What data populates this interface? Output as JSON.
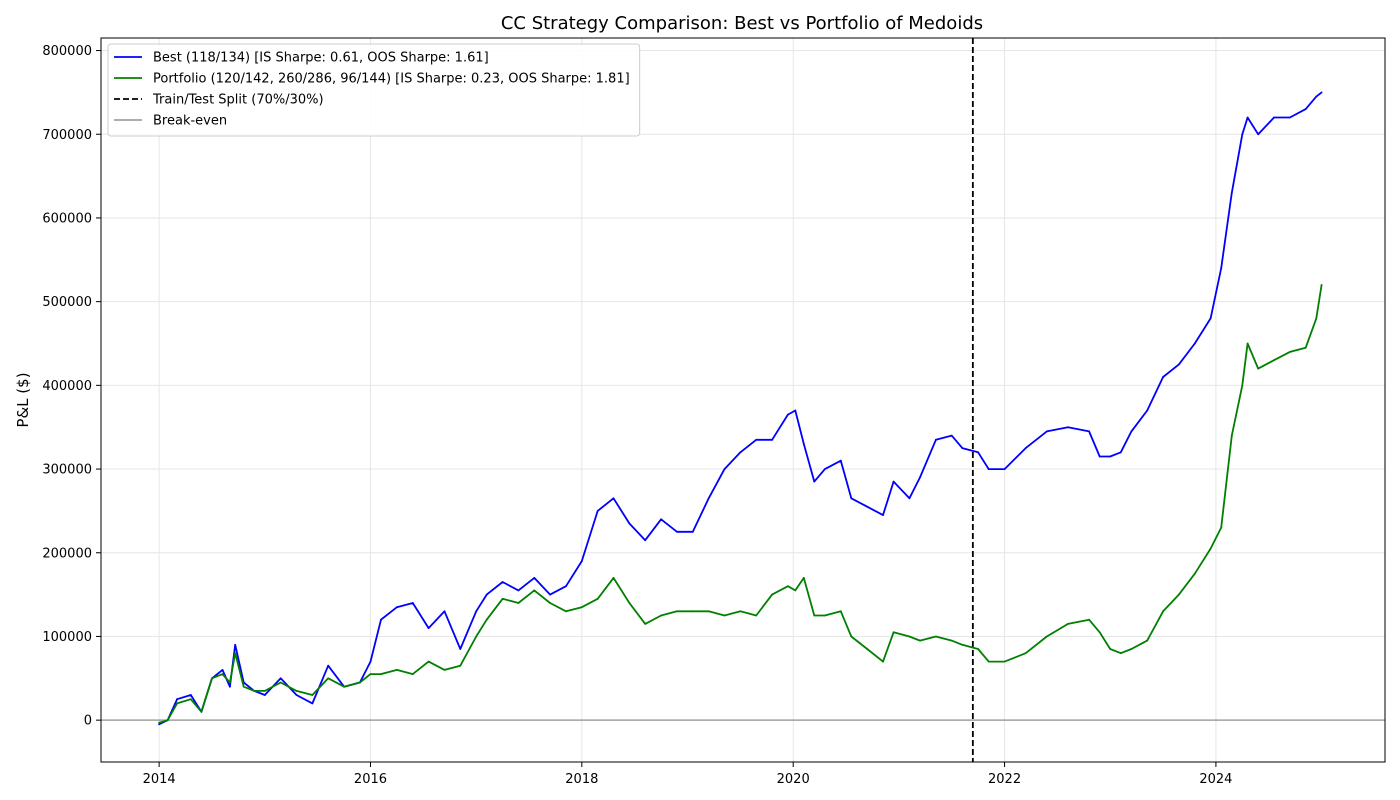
{
  "chart_data": {
    "type": "line",
    "title": "CC Strategy Comparison: Best vs Portfolio of Medoids",
    "xlabel": "",
    "ylabel": "P&L ($)",
    "xlim": [
      2013.45,
      2025.6
    ],
    "ylim": [
      -50000,
      815000
    ],
    "x_ticks": [
      2014,
      2016,
      2018,
      2020,
      2022,
      2024
    ],
    "x_tick_labels": [
      "2014",
      "2016",
      "2018",
      "2020",
      "2022",
      "2024"
    ],
    "y_ticks": [
      0,
      100000,
      200000,
      300000,
      400000,
      500000,
      600000,
      700000,
      800000
    ],
    "y_tick_labels": [
      "0",
      "100000",
      "200000",
      "300000",
      "400000",
      "500000",
      "600000",
      "700000",
      "800000"
    ],
    "grid": true,
    "legend_position": "upper left",
    "split_x": 2021.7,
    "baseline_y": 0,
    "series": [
      {
        "name": "Best (118/134) [IS Sharpe: 0.61, OOS Sharpe: 1.61]",
        "color": "#0000ff",
        "style": "solid",
        "x": [
          2014.0,
          2014.08,
          2014.17,
          2014.3,
          2014.4,
          2014.5,
          2014.6,
          2014.67,
          2014.72,
          2014.8,
          2014.9,
          2015.0,
          2015.15,
          2015.3,
          2015.45,
          2015.6,
          2015.75,
          2015.9,
          2016.0,
          2016.1,
          2016.25,
          2016.4,
          2016.55,
          2016.7,
          2016.85,
          2017.0,
          2017.1,
          2017.25,
          2017.4,
          2017.55,
          2017.7,
          2017.85,
          2018.0,
          2018.15,
          2018.3,
          2018.45,
          2018.6,
          2018.75,
          2018.9,
          2019.05,
          2019.2,
          2019.35,
          2019.5,
          2019.65,
          2019.8,
          2019.95,
          2020.02,
          2020.1,
          2020.2,
          2020.3,
          2020.45,
          2020.55,
          2020.7,
          2020.85,
          2020.95,
          2021.1,
          2021.2,
          2021.35,
          2021.5,
          2021.6,
          2021.75,
          2021.85,
          2022.0,
          2022.2,
          2022.4,
          2022.6,
          2022.8,
          2022.9,
          2023.0,
          2023.1,
          2023.2,
          2023.35,
          2023.5,
          2023.65,
          2023.8,
          2023.95,
          2024.05,
          2024.15,
          2024.25,
          2024.3,
          2024.4,
          2024.55,
          2024.7,
          2024.85,
          2024.95,
          2025.0
        ],
        "y": [
          -5000,
          0,
          25000,
          30000,
          10000,
          50000,
          60000,
          40000,
          90000,
          45000,
          35000,
          30000,
          50000,
          30000,
          20000,
          65000,
          40000,
          45000,
          70000,
          120000,
          135000,
          140000,
          110000,
          130000,
          85000,
          130000,
          150000,
          165000,
          155000,
          170000,
          150000,
          160000,
          190000,
          250000,
          265000,
          235000,
          215000,
          240000,
          225000,
          225000,
          265000,
          300000,
          320000,
          335000,
          335000,
          365000,
          370000,
          330000,
          285000,
          300000,
          310000,
          265000,
          255000,
          245000,
          285000,
          265000,
          290000,
          335000,
          340000,
          325000,
          320000,
          300000,
          300000,
          325000,
          345000,
          350000,
          345000,
          315000,
          315000,
          320000,
          345000,
          370000,
          410000,
          425000,
          450000,
          480000,
          540000,
          630000,
          700000,
          720000,
          700000,
          720000,
          720000,
          730000,
          745000,
          750000
        ]
      },
      {
        "name": "Portfolio (120/142, 260/286, 96/144) [IS Sharpe: 0.23, OOS Sharpe: 1.81]",
        "color": "#008000",
        "style": "solid",
        "x": [
          2014.0,
          2014.08,
          2014.17,
          2014.3,
          2014.4,
          2014.5,
          2014.6,
          2014.67,
          2014.72,
          2014.8,
          2014.9,
          2015.0,
          2015.15,
          2015.3,
          2015.45,
          2015.6,
          2015.75,
          2015.9,
          2016.0,
          2016.1,
          2016.25,
          2016.4,
          2016.55,
          2016.7,
          2016.85,
          2017.0,
          2017.1,
          2017.25,
          2017.4,
          2017.55,
          2017.7,
          2017.85,
          2018.0,
          2018.15,
          2018.3,
          2018.45,
          2018.6,
          2018.75,
          2018.9,
          2019.05,
          2019.2,
          2019.35,
          2019.5,
          2019.65,
          2019.8,
          2019.95,
          2020.02,
          2020.1,
          2020.2,
          2020.3,
          2020.45,
          2020.55,
          2020.7,
          2020.85,
          2020.95,
          2021.1,
          2021.2,
          2021.35,
          2021.5,
          2021.6,
          2021.75,
          2021.85,
          2022.0,
          2022.2,
          2022.4,
          2022.6,
          2022.8,
          2022.9,
          2023.0,
          2023.1,
          2023.2,
          2023.35,
          2023.5,
          2023.65,
          2023.8,
          2023.95,
          2024.05,
          2024.15,
          2024.25,
          2024.3,
          2024.4,
          2024.55,
          2024.7,
          2024.85,
          2024.95,
          2025.0
        ],
        "y": [
          -3000,
          0,
          20000,
          25000,
          10000,
          50000,
          55000,
          45000,
          80000,
          40000,
          35000,
          35000,
          45000,
          35000,
          30000,
          50000,
          40000,
          45000,
          55000,
          55000,
          60000,
          55000,
          70000,
          60000,
          65000,
          100000,
          120000,
          145000,
          140000,
          155000,
          140000,
          130000,
          135000,
          145000,
          170000,
          140000,
          115000,
          125000,
          130000,
          130000,
          130000,
          125000,
          130000,
          125000,
          150000,
          160000,
          155000,
          170000,
          125000,
          125000,
          130000,
          100000,
          85000,
          70000,
          105000,
          100000,
          95000,
          100000,
          95000,
          90000,
          85000,
          70000,
          70000,
          80000,
          100000,
          115000,
          120000,
          105000,
          85000,
          80000,
          85000,
          95000,
          130000,
          150000,
          175000,
          205000,
          230000,
          340000,
          400000,
          450000,
          420000,
          430000,
          440000,
          445000,
          480000,
          520000
        ]
      }
    ],
    "legend": [
      {
        "label": "Best (118/134) [IS Sharpe: 0.61, OOS Sharpe: 1.61]",
        "color": "#0000ff",
        "style": "solid"
      },
      {
        "label": "Portfolio (120/142, 260/286, 96/144) [IS Sharpe: 0.23, OOS Sharpe: 1.81]",
        "color": "#008000",
        "style": "solid"
      },
      {
        "label": "Train/Test Split (70%/30%)",
        "color": "#000000",
        "style": "dashed"
      },
      {
        "label": "Break-even",
        "color": "#a0a0a0",
        "style": "solid"
      }
    ]
  }
}
